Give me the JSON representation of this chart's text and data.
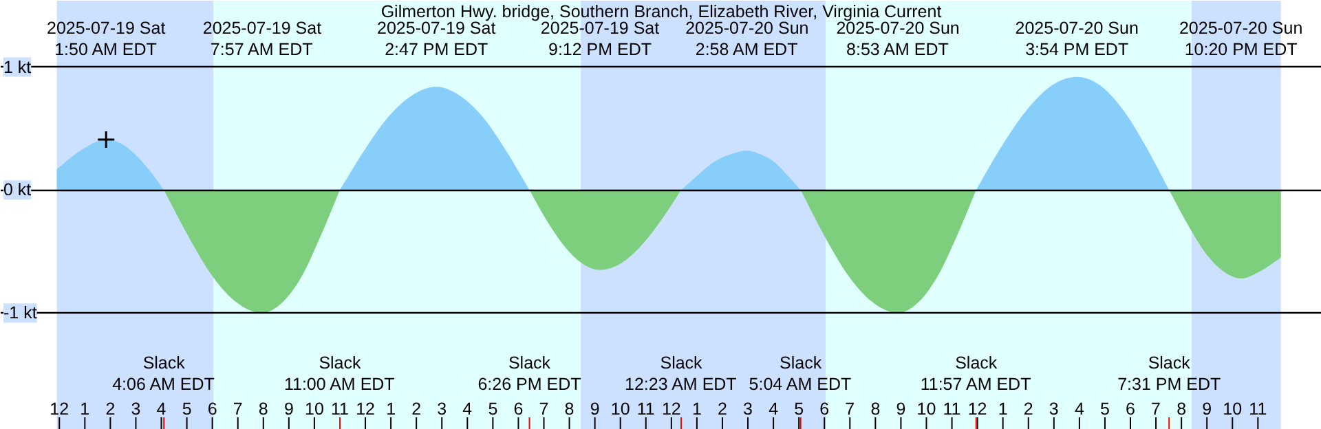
{
  "chart_data": {
    "type": "area",
    "title": "Gilmerton Hwy. bridge, Southern Branch, Elizabeth River, Virginia Current",
    "xlim": [
      "2025-07-18T21:42",
      "2025-07-21T01:30"
    ],
    "ylim": [
      -1.95,
      1.54
    ],
    "yticks": [
      {
        "value": 1,
        "label": "1 kt"
      },
      {
        "value": 0,
        "label": "0 kt"
      },
      {
        "value": -1,
        "label": "-1 kt"
      }
    ],
    "xticks": [
      {
        "value": "2025-07-19T00:00",
        "label": "12"
      },
      {
        "value": "2025-07-19T01:00",
        "label": "1"
      },
      {
        "value": "2025-07-19T02:00",
        "label": "2"
      },
      {
        "value": "2025-07-19T03:00",
        "label": "3"
      },
      {
        "value": "2025-07-19T04:00",
        "label": "4"
      },
      {
        "value": "2025-07-19T05:00",
        "label": "5"
      },
      {
        "value": "2025-07-19T06:00",
        "label": "6"
      },
      {
        "value": "2025-07-19T07:00",
        "label": "7"
      },
      {
        "value": "2025-07-19T08:00",
        "label": "8"
      },
      {
        "value": "2025-07-19T09:00",
        "label": "9"
      },
      {
        "value": "2025-07-19T10:00",
        "label": "10"
      },
      {
        "value": "2025-07-19T11:00",
        "label": "11"
      },
      {
        "value": "2025-07-19T12:00",
        "label": "12"
      },
      {
        "value": "2025-07-19T13:00",
        "label": "1"
      },
      {
        "value": "2025-07-19T14:00",
        "label": "2"
      },
      {
        "value": "2025-07-19T15:00",
        "label": "3"
      },
      {
        "value": "2025-07-19T16:00",
        "label": "4"
      },
      {
        "value": "2025-07-19T17:00",
        "label": "5"
      },
      {
        "value": "2025-07-19T18:00",
        "label": "6"
      },
      {
        "value": "2025-07-19T19:00",
        "label": "7"
      },
      {
        "value": "2025-07-19T20:00",
        "label": "8"
      },
      {
        "value": "2025-07-19T21:00",
        "label": "9"
      },
      {
        "value": "2025-07-19T22:00",
        "label": "10"
      },
      {
        "value": "2025-07-19T23:00",
        "label": "11"
      },
      {
        "value": "2025-07-20T00:00",
        "label": "12"
      },
      {
        "value": "2025-07-20T01:00",
        "label": "1"
      },
      {
        "value": "2025-07-20T02:00",
        "label": "2"
      },
      {
        "value": "2025-07-20T03:00",
        "label": "3"
      },
      {
        "value": "2025-07-20T04:00",
        "label": "4"
      },
      {
        "value": "2025-07-20T05:00",
        "label": "5"
      },
      {
        "value": "2025-07-20T06:00",
        "label": "6"
      },
      {
        "value": "2025-07-20T07:00",
        "label": "7"
      },
      {
        "value": "2025-07-20T08:00",
        "label": "8"
      },
      {
        "value": "2025-07-20T09:00",
        "label": "9"
      },
      {
        "value": "2025-07-20T10:00",
        "label": "10"
      },
      {
        "value": "2025-07-20T11:00",
        "label": "11"
      },
      {
        "value": "2025-07-20T12:00",
        "label": "12"
      },
      {
        "value": "2025-07-20T13:00",
        "label": "1"
      },
      {
        "value": "2025-07-20T14:00",
        "label": "2"
      },
      {
        "value": "2025-07-20T15:00",
        "label": "3"
      },
      {
        "value": "2025-07-20T16:00",
        "label": "4"
      },
      {
        "value": "2025-07-20T17:00",
        "label": "5"
      },
      {
        "value": "2025-07-20T18:00",
        "label": "6"
      },
      {
        "value": "2025-07-20T19:00",
        "label": "7"
      },
      {
        "value": "2025-07-20T20:00",
        "label": "8"
      },
      {
        "value": "2025-07-20T21:00",
        "label": "9"
      },
      {
        "value": "2025-07-20T22:00",
        "label": "10"
      },
      {
        "value": "2025-07-20T23:00",
        "label": "11"
      }
    ],
    "x2lim": [
      "2025-07-18T21:42",
      "2025-07-21T01:30"
    ],
    "x2ticks": [
      {
        "value": "2025-07-19T01:50",
        "label": "2025-07-19 Sat\n1:50 AM EDT"
      },
      {
        "value": "2025-07-19T07:57",
        "label": "2025-07-19 Sat\n7:57 AM EDT"
      },
      {
        "value": "2025-07-19T14:47",
        "label": "2025-07-19 Sat\n2:47 PM EDT"
      },
      {
        "value": "2025-07-19T21:12",
        "label": "2025-07-19 Sat\n9:12 PM EDT"
      },
      {
        "value": "2025-07-20T02:58",
        "label": "2025-07-20 Sun\n2:58 AM EDT"
      },
      {
        "value": "2025-07-20T08:53",
        "label": "2025-07-20 Sun\n8:53 AM EDT"
      },
      {
        "value": "2025-07-20T15:54",
        "label": "2025-07-20 Sun\n3:54 PM EDT"
      },
      {
        "value": "2025-07-20T22:20",
        "label": "2025-07-20 Sun\n10:20 PM EDT"
      }
    ],
    "grid": "y",
    "bands": [
      {
        "axis": "x",
        "from": "2025-07-18T23:54",
        "to": "2025-07-19T06:03",
        "color": "#cce0ff"
      },
      {
        "axis": "x",
        "from": "2025-07-19T06:03",
        "to": "2025-07-19T20:27",
        "color": "#e0ffff"
      },
      {
        "axis": "x",
        "from": "2025-07-19T20:27",
        "to": "2025-07-20T06:03",
        "color": "#cce0ff"
      },
      {
        "axis": "x",
        "from": "2025-07-20T06:03",
        "to": "2025-07-20T20:24",
        "color": "#e0ffff"
      },
      {
        "axis": "x",
        "from": "2025-07-20T20:24",
        "to": "2025-07-20T23:54",
        "color": "#cce0ff"
      }
    ],
    "series": [
      {
        "color": "#87cefa",
        "x": [
          "2025-07-18T23:54",
          "2025-07-19T00:54",
          "2025-07-19T01:50",
          "2025-07-19T02:24",
          "2025-07-19T02:58",
          "2025-07-19T03:32",
          "2025-07-19T04:06",
          "2025-07-19T07:57",
          "2025-07-19T11:00",
          "2025-07-19T11:57",
          "2025-07-19T12:53",
          "2025-07-19T13:50",
          "2025-07-19T14:47",
          "2025-07-19T15:41",
          "2025-07-19T16:37",
          "2025-07-19T17:31",
          "2025-07-19T18:26",
          "2025-07-19T21:12",
          "2025-07-20T00:23",
          "2025-07-20T01:02",
          "2025-07-20T01:41",
          "2025-07-20T02:19",
          "2025-07-20T02:58",
          "2025-07-20T03:30",
          "2025-07-20T04:01",
          "2025-07-20T04:33",
          "2025-07-20T05:04",
          "2025-07-20T08:53",
          "2025-07-20T11:57",
          "2025-07-20T12:56",
          "2025-07-20T13:56",
          "2025-07-20T14:55",
          "2025-07-20T15:54",
          "2025-07-20T16:49",
          "2025-07-20T17:43",
          "2025-07-20T18:37",
          "2025-07-20T19:31"
        ],
        "values": [
          0.17,
          0.33,
          0.41,
          0.38,
          0.29,
          0.16,
          0,
          null,
          0,
          0.32,
          0.59,
          0.77,
          0.84,
          0.77,
          0.59,
          0.32,
          0,
          null,
          0,
          0.12,
          0.23,
          0.29,
          0.32,
          0.29,
          0.23,
          0.12,
          0,
          null,
          0,
          0.35,
          0.65,
          0.85,
          0.92,
          0.85,
          0.65,
          0.35,
          0
        ]
      },
      {
        "color": "#7dcf7d",
        "x": [
          "2025-07-19T04:06",
          "2025-07-19T05:04",
          "2025-07-19T06:02",
          "2025-07-19T06:59",
          "2025-07-19T07:57",
          "2025-07-19T08:43",
          "2025-07-19T09:29",
          "2025-07-19T10:14",
          "2025-07-19T11:00",
          "2025-07-19T14:47",
          "2025-07-19T18:26",
          "2025-07-19T19:07",
          "2025-07-19T19:49",
          "2025-07-19T20:31",
          "2025-07-19T21:12",
          "2025-07-19T22:00",
          "2025-07-19T22:47",
          "2025-07-19T23:35",
          "2025-07-20T00:23",
          "2025-07-20T02:58",
          "2025-07-20T05:04",
          "2025-07-20T06:01",
          "2025-07-20T06:59",
          "2025-07-20T07:56",
          "2025-07-20T08:53",
          "2025-07-20T09:39",
          "2025-07-20T10:25",
          "2025-07-20T11:11",
          "2025-07-20T11:57",
          "2025-07-20T15:54",
          "2025-07-20T19:31",
          "2025-07-20T20:13",
          "2025-07-20T20:56",
          "2025-07-20T21:38",
          "2025-07-20T22:20",
          "2025-07-20T23:06",
          "2025-07-20T23:54"
        ],
        "values": [
          0,
          -0.38,
          -0.71,
          -0.92,
          -1.0,
          -0.92,
          -0.71,
          -0.38,
          0,
          null,
          0,
          -0.25,
          -0.46,
          -0.6,
          -0.65,
          -0.6,
          -0.46,
          -0.25,
          0,
          null,
          0,
          -0.38,
          -0.71,
          -0.92,
          -1.0,
          -0.92,
          -0.71,
          -0.38,
          0,
          null,
          0,
          -0.27,
          -0.51,
          -0.66,
          -0.72,
          -0.66,
          -0.55
        ]
      },
      {
        "type": "scatter",
        "marker": "cross",
        "color": "#000000",
        "x": [
          "2025-07-19T01:50"
        ],
        "values": [
          0.41
        ]
      }
    ],
    "annotations": [
      "Slack\n4:06 AM EDT",
      "Slack\n11:00 AM EDT",
      "Slack\n6:26 PM EDT",
      "Slack\n12:23 AM EDT",
      "Slack\n5:04 AM EDT",
      "Slack\n11:57 AM EDT",
      "Slack\n7:31 PM EDT"
    ]
  }
}
